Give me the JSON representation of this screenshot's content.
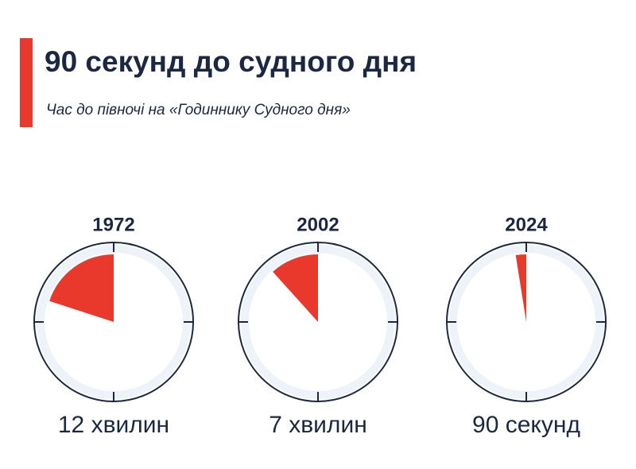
{
  "chart_data": {
    "type": "clock",
    "title": "90 секунд до судного дня",
    "subtitle": "Час до півночі на «Годиннику Судного дня»",
    "categories": [
      "1972",
      "2002",
      "2024"
    ],
    "values": [
      12,
      7,
      1.5
    ],
    "value_labels": [
      "12 хвилин",
      "7 хвилин",
      "90 секунд"
    ],
    "ylim": [
      0,
      60
    ],
    "color": "#e8392c"
  }
}
